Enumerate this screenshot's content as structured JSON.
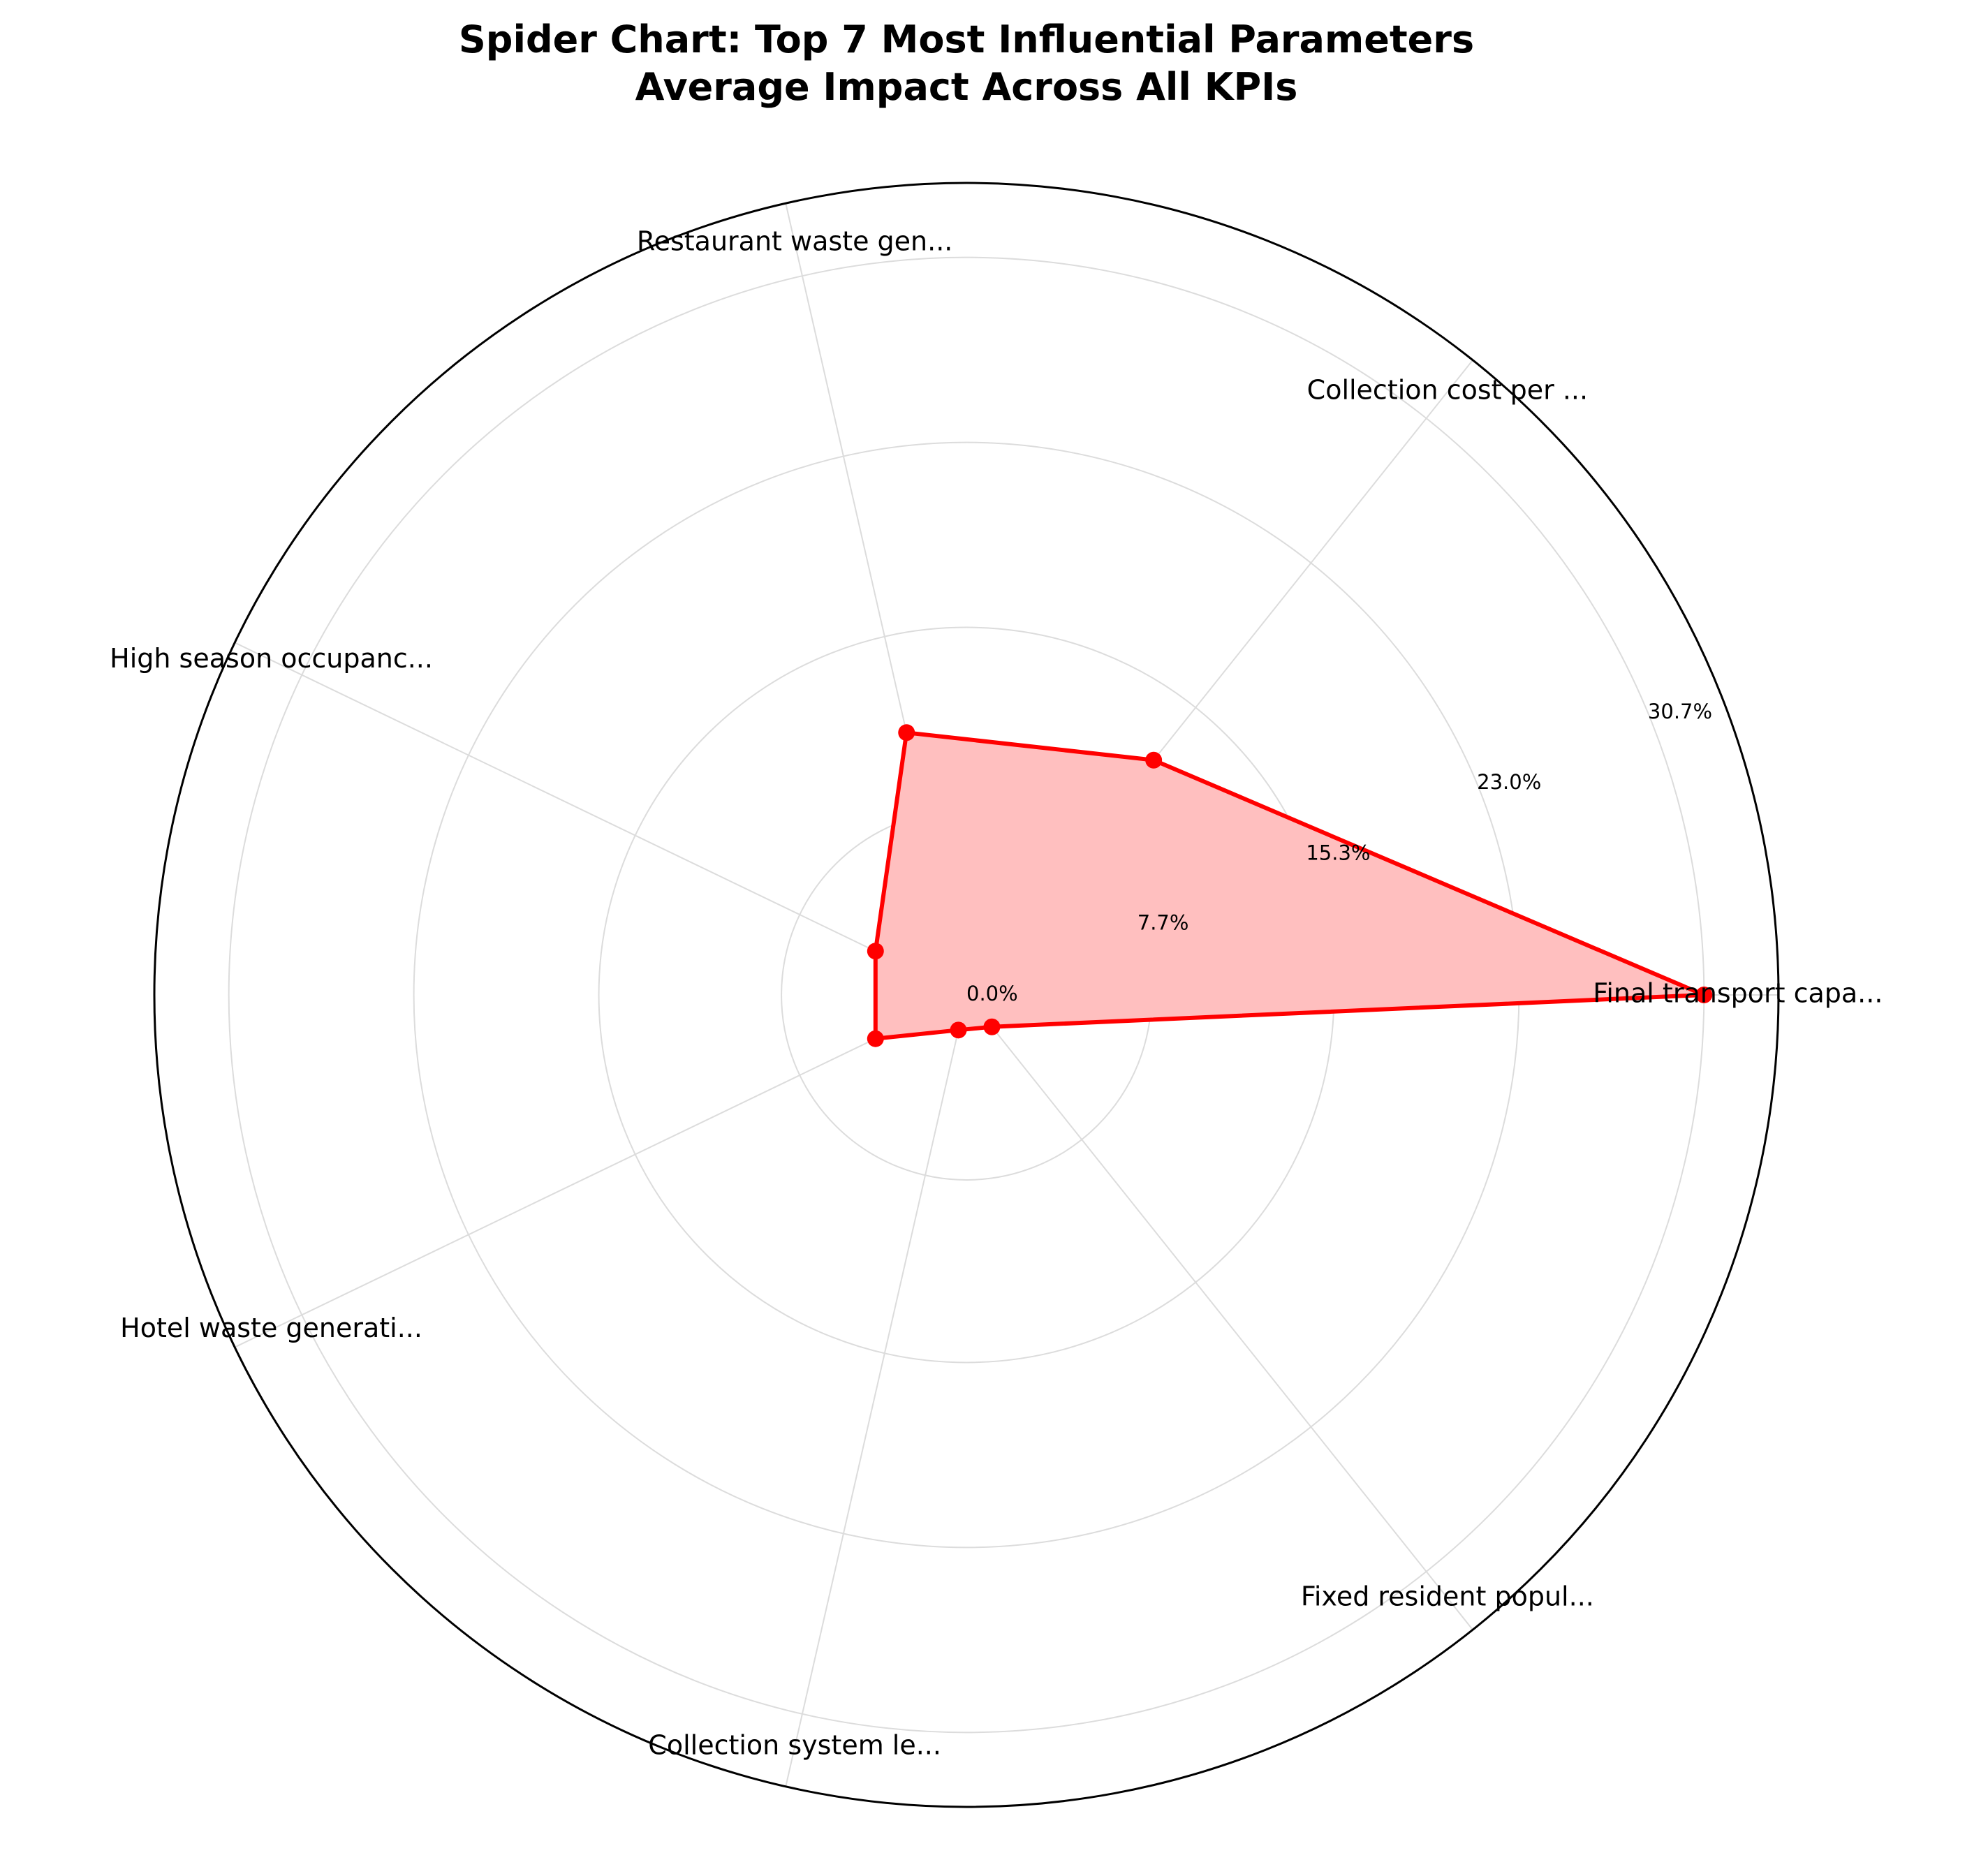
{
  "chart_data": {
    "type": "radar",
    "title": "Spider Chart: Top 7 Most Influential Parameters",
    "subtitle": "Average Impact Across All KPIs",
    "categories": [
      "Final transport capa...",
      "Collection cost per ...",
      "Restaurant waste gen...",
      "High season occupanc...",
      "Hotel waste generati...",
      "Collection system le...",
      "Fixed resident popul..."
    ],
    "series": [
      {
        "values": [
          30.7,
          12.5,
          11.2,
          4.2,
          4.2,
          1.5,
          1.7
        ],
        "color": "#ff0000",
        "fill_color": "#ffbfbf"
      }
    ],
    "radial_ticks": [
      "0.0%",
      "7.7%",
      "15.3%",
      "23.0%",
      "30.7%"
    ],
    "radial_tick_values": [
      0.0,
      7.7,
      15.3,
      23.0,
      30.7
    ],
    "rlim": [
      0,
      33.8
    ],
    "grid": true,
    "legend": "none"
  }
}
